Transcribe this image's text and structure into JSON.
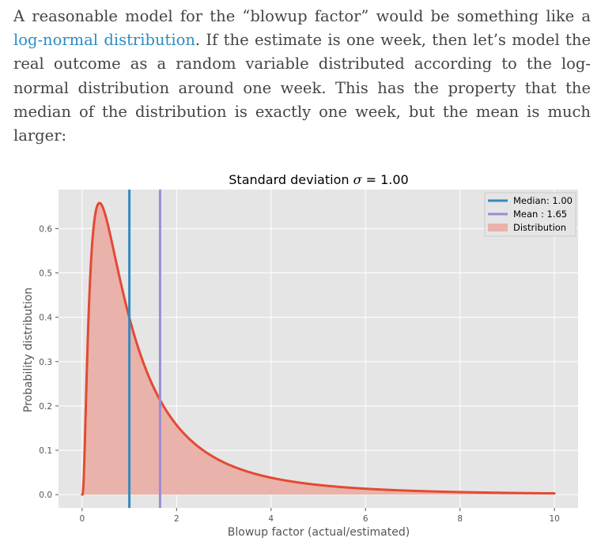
{
  "article": {
    "text_before_link": "A reasonable model for the “blowup factor” would be something like a",
    "link_text": "log-normal distribution",
    "text_after_link": ". If the estimate is one week, then let’s model the real outcome as a random variable distributed according to the log-normal distribution around one week. This has the property that the median of the distribution is exactly one week, but the mean is much larger:"
  },
  "colors": {
    "plot_bg": "#e5e5e5",
    "grid": "#ffffff",
    "curve": "#e24a33",
    "fill": "#e9b2aa",
    "median_line": "#348abd",
    "mean_line": "#988ed5",
    "text": "#555555"
  },
  "chart_data": {
    "type": "area",
    "title_prefix": "Standard deviation ",
    "title_symbol": "σ",
    "title_suffix": " = 1.00",
    "xlabel": "Blowup factor (actual/estimated)",
    "ylabel": "Probability distribution",
    "xlim": [
      -0.5,
      10.5
    ],
    "ylim": [
      -0.03,
      0.688
    ],
    "x_ticks": [
      0,
      2,
      4,
      6,
      8,
      10
    ],
    "x_tick_labels": [
      "0",
      "2",
      "4",
      "6",
      "8",
      "10"
    ],
    "y_ticks": [
      0.0,
      0.1,
      0.2,
      0.3,
      0.4,
      0.5,
      0.6
    ],
    "y_tick_labels": [
      "0.0",
      "0.1",
      "0.2",
      "0.3",
      "0.4",
      "0.5",
      "0.6"
    ],
    "grid": true,
    "legend_position": "top-right",
    "distribution": {
      "family": "log-normal",
      "mu": 0,
      "sigma": 1.0,
      "x_range": [
        0,
        10
      ]
    },
    "series": [
      {
        "name": "Median: 1.00",
        "kind": "vline",
        "x": 1.0
      },
      {
        "name": "Mean : 1.65",
        "kind": "vline",
        "x": 1.65
      },
      {
        "name": "Distribution",
        "kind": "area",
        "x": [
          0,
          0.1,
          0.2,
          0.3,
          0.37,
          0.5,
          0.7,
          1.0,
          1.5,
          2,
          3,
          4,
          5,
          6,
          7,
          8,
          9,
          10
        ],
        "y": [
          0,
          0.282,
          0.546,
          0.644,
          0.657,
          0.627,
          0.54,
          0.399,
          0.245,
          0.157,
          0.073,
          0.038,
          0.022,
          0.014,
          0.009,
          0.006,
          0.004,
          0.003
        ]
      }
    ]
  }
}
